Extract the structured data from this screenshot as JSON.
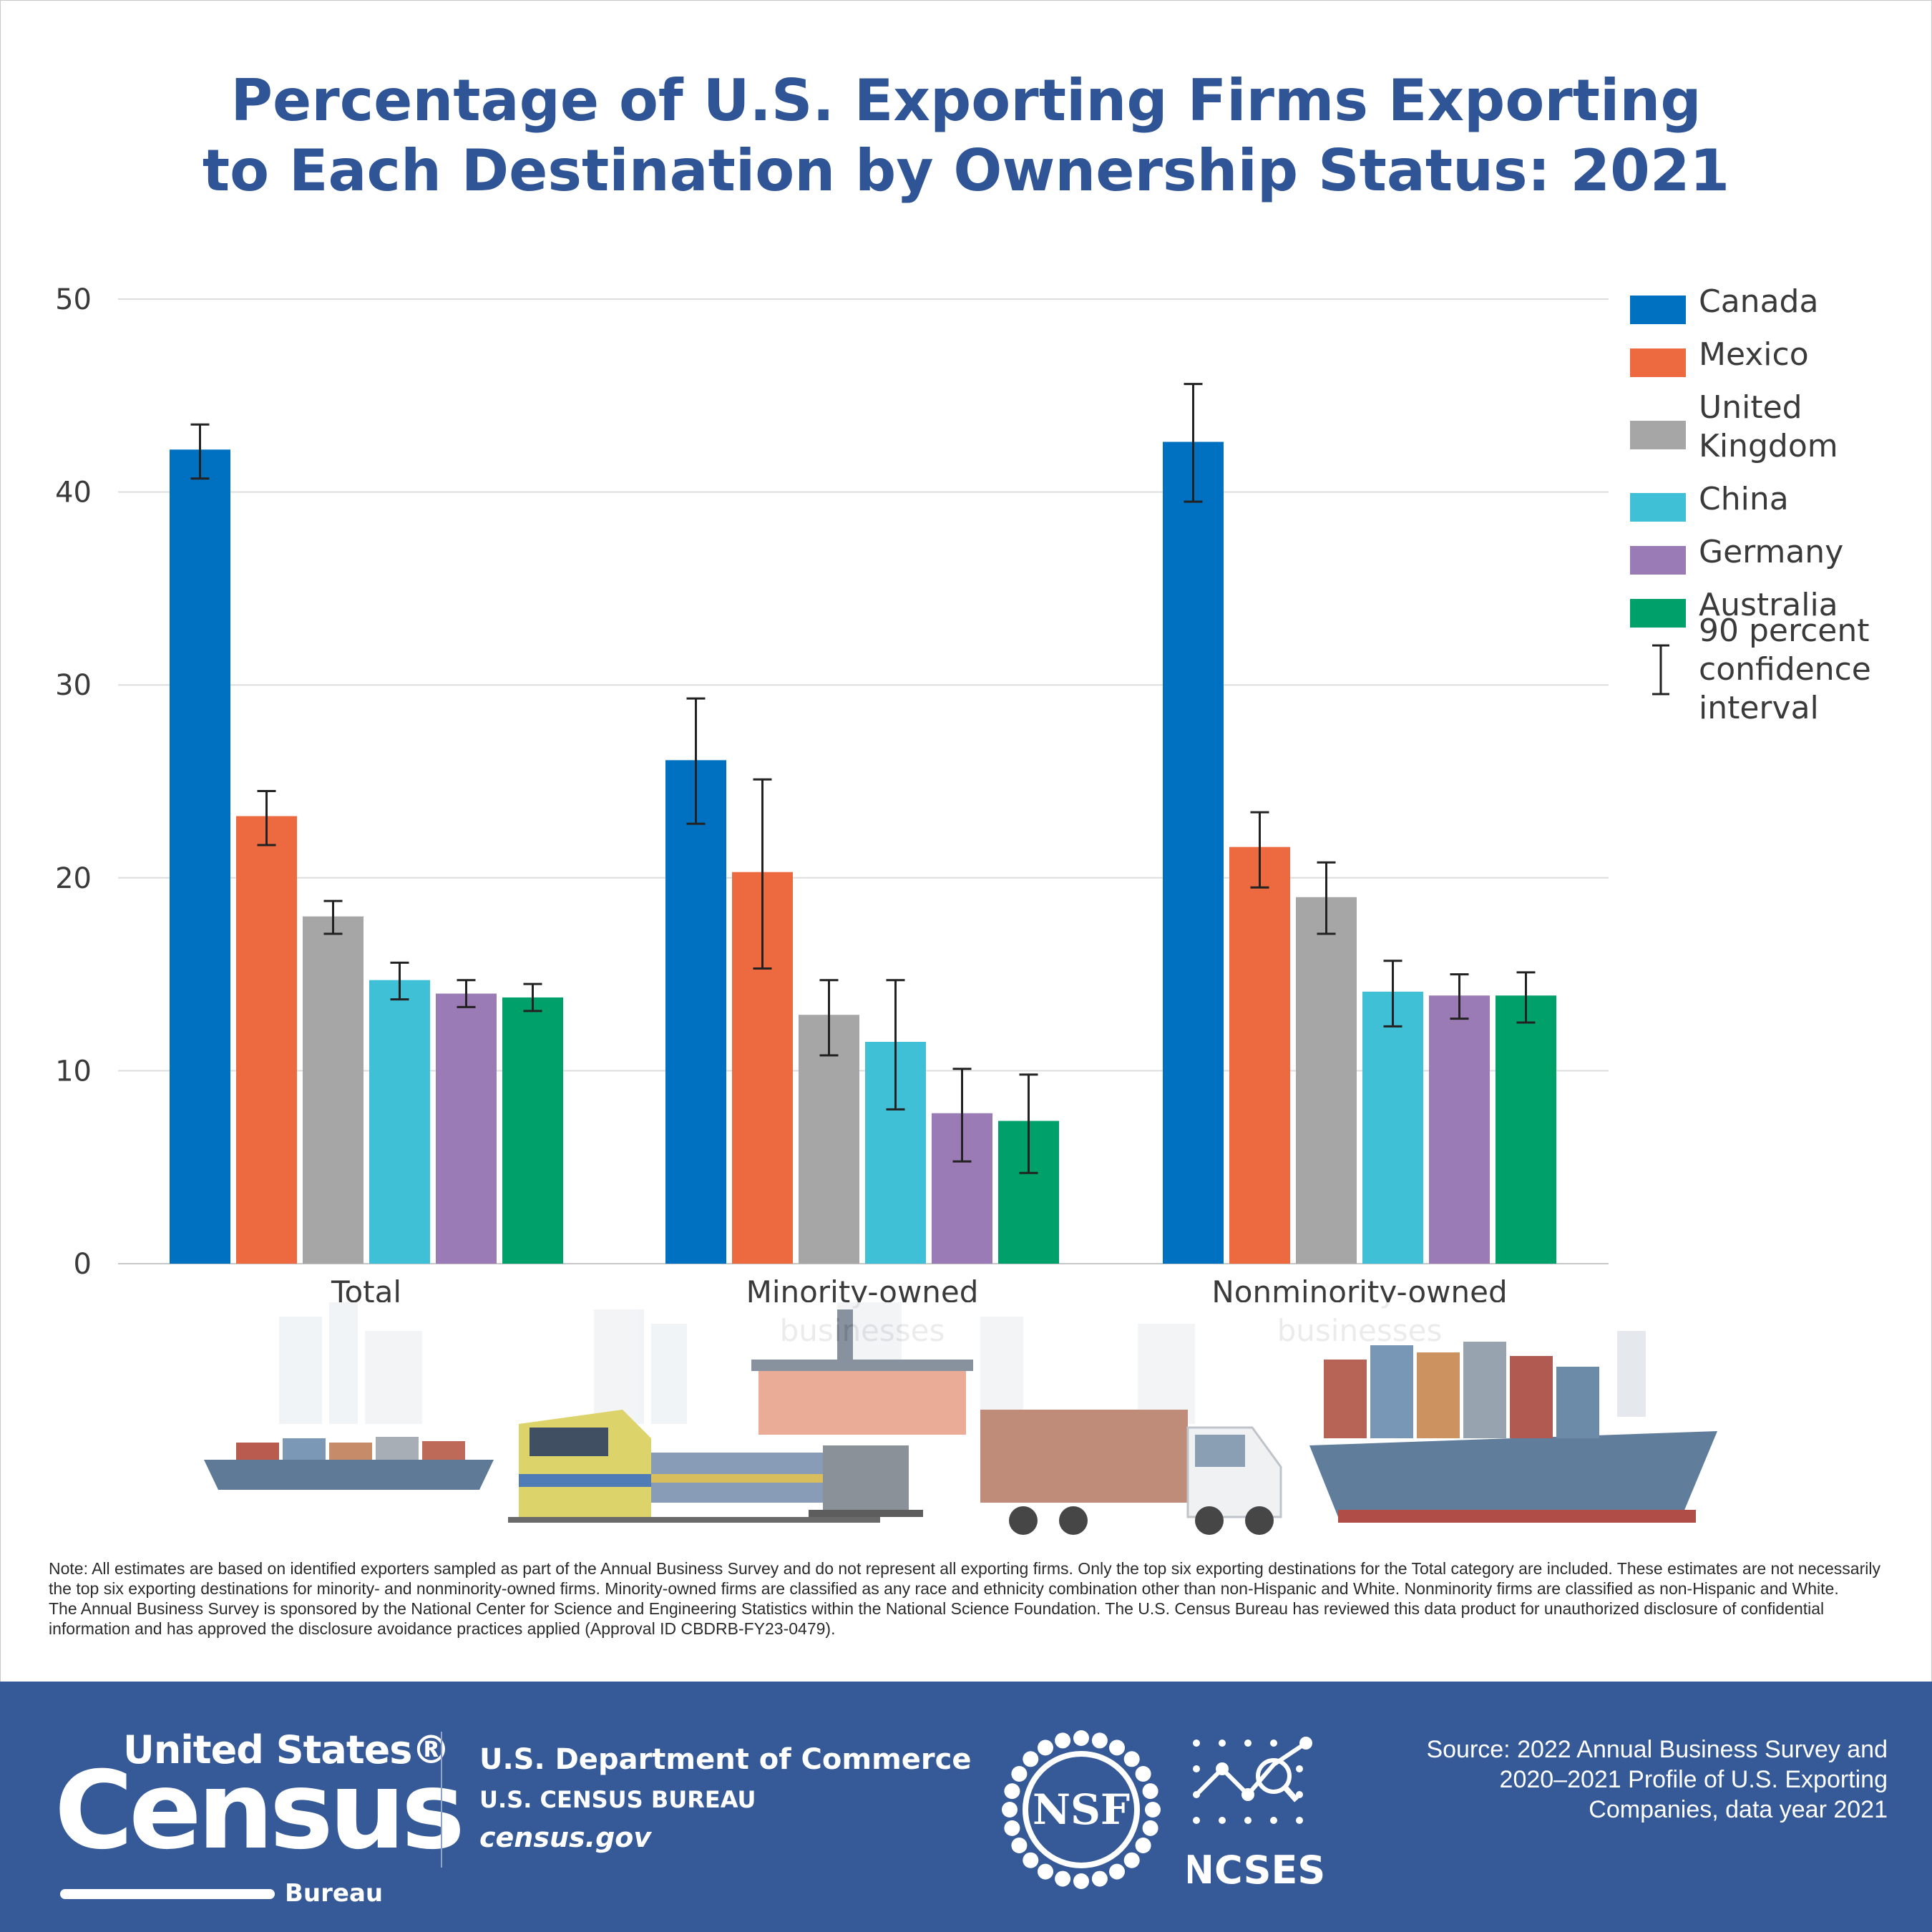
{
  "title": {
    "line1": "Percentage of U.S. Exporting Firms Exporting",
    "line2": "to Each Destination by Ownership Status: 2021"
  },
  "chart_data": {
    "type": "bar",
    "title": "Percentage of U.S. Exporting Firms Exporting to Each Destination by Ownership Status: 2021",
    "categories": [
      [
        "Total"
      ],
      [
        "Minority-owned",
        "businesses"
      ],
      [
        "Nonminority-owned",
        "businesses"
      ]
    ],
    "y_ticks": [
      0,
      10,
      20,
      30,
      40,
      50
    ],
    "ylim": [
      0,
      50
    ],
    "grid": true,
    "legend_position": "right",
    "series": [
      {
        "name": "Canada",
        "name_lines": [
          "Canada"
        ],
        "color": "#0070c0",
        "values": [
          42.2,
          26.1,
          42.6
        ],
        "ci_low": [
          40.7,
          22.8,
          39.5
        ],
        "ci_high": [
          43.5,
          29.3,
          45.6
        ]
      },
      {
        "name": "Mexico",
        "name_lines": [
          "Mexico"
        ],
        "color": "#ed6a40",
        "values": [
          23.2,
          20.3,
          21.6
        ],
        "ci_low": [
          21.7,
          15.3,
          19.5
        ],
        "ci_high": [
          24.5,
          25.1,
          23.4
        ]
      },
      {
        "name": "United Kingdom",
        "name_lines": [
          "United",
          "Kingdom"
        ],
        "color": "#a6a6a6",
        "values": [
          18.0,
          12.9,
          19.0
        ],
        "ci_low": [
          17.1,
          10.8,
          17.1
        ],
        "ci_high": [
          18.8,
          14.7,
          20.8
        ]
      },
      {
        "name": "China",
        "name_lines": [
          "China"
        ],
        "color": "#40c0d6",
        "values": [
          14.7,
          11.5,
          14.1
        ],
        "ci_low": [
          13.7,
          8.0,
          12.3
        ],
        "ci_high": [
          15.6,
          14.7,
          15.7
        ]
      },
      {
        "name": "Germany",
        "name_lines": [
          "Germany"
        ],
        "color": "#9b7bb5",
        "values": [
          14.0,
          7.8,
          13.9
        ],
        "ci_low": [
          13.3,
          5.3,
          12.7
        ],
        "ci_high": [
          14.7,
          10.1,
          15.0
        ]
      },
      {
        "name": "Australia",
        "name_lines": [
          "Australia"
        ],
        "color": "#00a06a",
        "values": [
          13.8,
          7.4,
          13.9
        ],
        "ci_low": [
          13.1,
          4.7,
          12.5
        ],
        "ci_high": [
          14.5,
          9.8,
          15.1
        ]
      }
    ],
    "ci_legend_lines": [
      "90 percent",
      "confidence",
      "interval"
    ],
    "colors": {
      "axis_text": "#3a3a3a",
      "gridline": "#dddddd",
      "error_bar": "#222222"
    }
  },
  "notes": {
    "p1": "Note: All estimates are based on identified exporters sampled as part of the Annual Business Survey and do not represent all exporting firms. Only the top six exporting destinations for the Total category are included. These estimates are not necessarily the top six exporting destinations for minority- and nonminority-owned firms. Minority-owned firms are classified as any race and ethnicity combination other than non-Hispanic and White. Nonminority firms are classified as non-Hispanic and White.",
    "p2": "The Annual Business Survey is sponsored by the National Center for Science and Engineering Statistics within the National Science Foundation. The U.S. Census Bureau has reviewed this data product for unauthorized disclosure of confidential information and has approved the disclosure avoidance practices applied (Approval ID CBDRB-FY23-0479)."
  },
  "footer": {
    "logo_line1": "United States®",
    "logo_line2": "Census",
    "logo_line3": "Bureau",
    "dept": "U.S. Department of Commerce",
    "bureau": "U.S. CENSUS BUREAU",
    "site": "census.gov",
    "nsf_label": "NSF",
    "ncses_label": "NCSES",
    "source_line1": "Source: 2022 Annual Business Survey and",
    "source_line2": "2020–2021 Profile of U.S. Exporting",
    "source_line3": "Companies, data year 2021"
  },
  "scene_icons": [
    "cargo-ship-icon",
    "train-icon",
    "container-crane-icon",
    "truck-icon",
    "container-ship-icon"
  ],
  "colors": {
    "title": "#2f5597",
    "footer_bg": "#355a97"
  }
}
